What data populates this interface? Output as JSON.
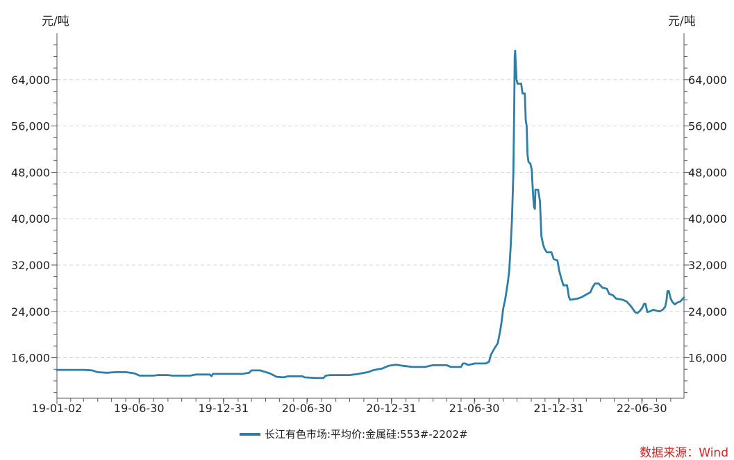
{
  "chart_data": {
    "type": "line",
    "y_unit_left": "元/吨",
    "y_unit_right": "元/吨",
    "x_tick_labels": [
      "19-01-02",
      "19-06-30",
      "19-12-31",
      "20-06-30",
      "20-12-31",
      "21-06-30",
      "21-12-31",
      "22-06-30"
    ],
    "x_range": [
      "2019-01-02",
      "2022-09-30"
    ],
    "y_ticks": [
      16000,
      24000,
      32000,
      40000,
      48000,
      56000,
      64000
    ],
    "y_tick_labels": [
      "16,000",
      "24,000",
      "32,000",
      "40,000",
      "48,000",
      "56,000",
      "64,000"
    ],
    "ylim": [
      9000,
      72000
    ],
    "grid": "horizontal dashed",
    "legend_position": "bottom",
    "series": [
      {
        "name": "长江有色市场:平均价:金属硅:553#-2202#",
        "color": "#2e7ea6",
        "points": [
          [
            "2019-01-02",
            13900
          ],
          [
            "2019-03-01",
            13900
          ],
          [
            "2019-03-20",
            13800
          ],
          [
            "2019-04-01",
            13500
          ],
          [
            "2019-04-20",
            13400
          ],
          [
            "2019-05-10",
            13500
          ],
          [
            "2019-06-01",
            13500
          ],
          [
            "2019-06-20",
            13300
          ],
          [
            "2019-07-01",
            12900
          ],
          [
            "2019-08-01",
            12900
          ],
          [
            "2019-08-10",
            13000
          ],
          [
            "2019-09-01",
            13000
          ],
          [
            "2019-09-10",
            12900
          ],
          [
            "2019-10-20",
            12900
          ],
          [
            "2019-11-01",
            13100
          ],
          [
            "2019-12-01",
            13100
          ],
          [
            "2019-12-05",
            12800
          ],
          [
            "2019-12-08",
            13200
          ],
          [
            "2020-02-10",
            13200
          ],
          [
            "2020-02-25",
            13400
          ],
          [
            "2020-03-01",
            13800
          ],
          [
            "2020-03-20",
            13800
          ],
          [
            "2020-04-10",
            13300
          ],
          [
            "2020-04-25",
            12700
          ],
          [
            "2020-05-10",
            12600
          ],
          [
            "2020-05-20",
            12800
          ],
          [
            "2020-06-20",
            12800
          ],
          [
            "2020-06-25",
            12600
          ],
          [
            "2020-07-20",
            12500
          ],
          [
            "2020-08-05",
            12500
          ],
          [
            "2020-08-10",
            12900
          ],
          [
            "2020-08-20",
            13000
          ],
          [
            "2020-10-01",
            13000
          ],
          [
            "2020-10-20",
            13200
          ],
          [
            "2020-11-10",
            13500
          ],
          [
            "2020-11-20",
            13800
          ],
          [
            "2020-12-01",
            14000
          ],
          [
            "2020-12-10",
            14100
          ],
          [
            "2020-12-25",
            14600
          ],
          [
            "2021-01-10",
            14800
          ],
          [
            "2021-01-25",
            14600
          ],
          [
            "2021-02-15",
            14400
          ],
          [
            "2021-03-15",
            14400
          ],
          [
            "2021-03-25",
            14600
          ],
          [
            "2021-04-01",
            14700
          ],
          [
            "2021-05-01",
            14700
          ],
          [
            "2021-05-10",
            14400
          ],
          [
            "2021-05-20",
            14400
          ],
          [
            "2021-06-01",
            14400
          ],
          [
            "2021-06-05",
            15000
          ],
          [
            "2021-06-10",
            15000
          ],
          [
            "2021-06-15",
            14800
          ],
          [
            "2021-06-20",
            14800
          ],
          [
            "2021-07-01",
            15000
          ],
          [
            "2021-07-25",
            15000
          ],
          [
            "2021-08-01",
            15300
          ],
          [
            "2021-08-05",
            16500
          ],
          [
            "2021-08-12",
            17500
          ],
          [
            "2021-08-20",
            18500
          ],
          [
            "2021-08-25",
            20500
          ],
          [
            "2021-08-28",
            22000
          ],
          [
            "2021-09-01",
            24500
          ],
          [
            "2021-09-05",
            26000
          ],
          [
            "2021-09-08",
            27500
          ],
          [
            "2021-09-11",
            29000
          ],
          [
            "2021-09-14",
            31000
          ],
          [
            "2021-09-17",
            35000
          ],
          [
            "2021-09-20",
            40000
          ],
          [
            "2021-09-23",
            48000
          ],
          [
            "2021-09-25",
            60000
          ],
          [
            "2021-09-26",
            68000
          ],
          [
            "2021-09-27",
            69000
          ],
          [
            "2021-09-28",
            67000
          ],
          [
            "2021-09-30",
            64000
          ],
          [
            "2021-10-02",
            63300
          ],
          [
            "2021-10-10",
            63300
          ],
          [
            "2021-10-13",
            61600
          ],
          [
            "2021-10-18",
            61600
          ],
          [
            "2021-10-20",
            57000
          ],
          [
            "2021-10-22",
            56000
          ],
          [
            "2021-10-24",
            51000
          ],
          [
            "2021-10-26",
            49800
          ],
          [
            "2021-10-30",
            49500
          ],
          [
            "2021-11-02",
            48500
          ],
          [
            "2021-11-05",
            44000
          ],
          [
            "2021-11-07",
            42000
          ],
          [
            "2021-11-09",
            41700
          ],
          [
            "2021-11-10",
            45000
          ],
          [
            "2021-11-16",
            45000
          ],
          [
            "2021-11-20",
            43000
          ],
          [
            "2021-11-23",
            37000
          ],
          [
            "2021-11-27",
            35500
          ],
          [
            "2021-11-30",
            34800
          ],
          [
            "2021-12-05",
            34200
          ],
          [
            "2021-12-15",
            34200
          ],
          [
            "2021-12-20",
            33000
          ],
          [
            "2021-12-28",
            32800
          ],
          [
            "2022-01-01",
            31000
          ],
          [
            "2022-01-05",
            29800
          ],
          [
            "2022-01-10",
            28500
          ],
          [
            "2022-01-18",
            28500
          ],
          [
            "2022-01-22",
            26500
          ],
          [
            "2022-01-25",
            26000
          ],
          [
            "2022-02-10",
            26200
          ],
          [
            "2022-02-20",
            26500
          ],
          [
            "2022-03-01",
            26900
          ],
          [
            "2022-03-10",
            27300
          ],
          [
            "2022-03-15",
            28200
          ],
          [
            "2022-03-20",
            28800
          ],
          [
            "2022-03-28",
            28800
          ],
          [
            "2022-04-05",
            28100
          ],
          [
            "2022-04-15",
            27900
          ],
          [
            "2022-04-20",
            27000
          ],
          [
            "2022-04-28",
            26800
          ],
          [
            "2022-05-05",
            26200
          ],
          [
            "2022-05-20",
            26000
          ],
          [
            "2022-05-28",
            25700
          ],
          [
            "2022-06-05",
            25000
          ],
          [
            "2022-06-10",
            24500
          ],
          [
            "2022-06-15",
            23900
          ],
          [
            "2022-06-20",
            23700
          ],
          [
            "2022-06-25",
            24000
          ],
          [
            "2022-07-01",
            24600
          ],
          [
            "2022-07-05",
            25300
          ],
          [
            "2022-07-08",
            25300
          ],
          [
            "2022-07-12",
            23900
          ],
          [
            "2022-07-18",
            24000
          ],
          [
            "2022-07-25",
            24300
          ],
          [
            "2022-08-01",
            24100
          ],
          [
            "2022-08-08",
            24000
          ],
          [
            "2022-08-15",
            24300
          ],
          [
            "2022-08-20",
            24800
          ],
          [
            "2022-08-23",
            26000
          ],
          [
            "2022-08-25",
            27500
          ],
          [
            "2022-08-28",
            27500
          ],
          [
            "2022-09-01",
            26200
          ],
          [
            "2022-09-05",
            25600
          ],
          [
            "2022-09-10",
            25200
          ],
          [
            "2022-09-15",
            25500
          ],
          [
            "2022-09-22",
            25700
          ],
          [
            "2022-09-30",
            26400
          ]
        ]
      }
    ]
  },
  "source_label": "数据来源：Wind"
}
